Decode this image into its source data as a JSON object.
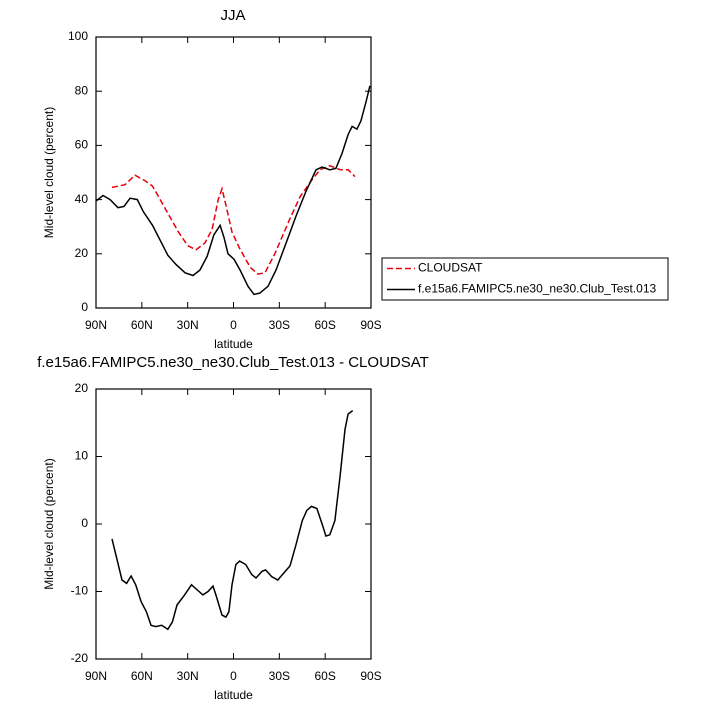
{
  "chart_data": [
    {
      "type": "line",
      "title": "JJA",
      "xlabel": "latitude",
      "ylabel": "Mid-level cloud (percent)",
      "xlim": [
        90,
        -90
      ],
      "xticks": [
        {
          "value": 90,
          "label": "90N"
        },
        {
          "value": 60,
          "label": "60N"
        },
        {
          "value": 30,
          "label": "30N"
        },
        0,
        {
          "value": -30,
          "label": "30S"
        },
        {
          "value": -60,
          "label": "60S"
        },
        {
          "value": -90,
          "label": "90S"
        }
      ],
      "ylim": [
        0,
        100
      ],
      "yticks": [
        0,
        20,
        40,
        60,
        80,
        100
      ],
      "series": [
        {
          "name": "CLOUDSAT",
          "color": "#e8000b",
          "dash": true,
          "x": [
            79.5,
            71,
            64.5,
            58,
            53,
            48,
            43,
            36,
            30,
            24.5,
            18.7,
            14,
            10,
            7.5,
            5,
            1,
            -4,
            -11,
            -16,
            -20.6,
            -27,
            -37,
            -43.5,
            -51,
            -56.6,
            -63,
            -70,
            -75,
            -79.5
          ],
          "values": [
            44.5,
            45.5,
            49,
            47,
            45,
            40,
            35,
            28,
            23,
            21.5,
            24,
            29,
            40,
            44,
            38,
            28,
            22,
            15,
            12.5,
            13,
            20,
            33,
            41,
            47,
            51,
            52.5,
            51,
            51,
            48.5
          ]
        },
        {
          "name": "f.e15a6.FAMIPC5.ne30_ne30.Club_Test.013",
          "color": "#000000",
          "dash": false,
          "x": [
            90,
            85.4,
            80.8,
            75.6,
            71.7,
            67.7,
            63,
            59,
            53,
            48,
            43,
            37.6,
            31.7,
            26.5,
            22,
            17.3,
            12.8,
            8.8,
            6.2,
            3.6,
            -0.3,
            -4.3,
            -9.5,
            -13.4,
            -17.3,
            -22.6,
            -27.8,
            -34.4,
            -41,
            -47.4,
            -54,
            -58,
            -63,
            -67,
            -71,
            -75,
            -77.6,
            -80.8,
            -83.4,
            -86.7,
            -89.3
          ],
          "values": [
            39.5,
            41.5,
            40,
            37,
            37.5,
            40.5,
            40,
            35.5,
            30.5,
            25,
            19.5,
            16,
            13,
            12,
            14,
            19,
            27,
            30.5,
            26,
            20,
            18,
            14,
            8,
            5,
            5.5,
            8,
            14,
            24,
            34,
            43,
            51,
            52,
            51,
            51.5,
            57,
            64,
            67,
            66,
            69,
            76,
            82
          ]
        }
      ]
    },
    {
      "type": "line",
      "title": "f.e15a6.FAMIPC5.ne30_ne30.Club_Test.013 - CLOUDSAT",
      "xlabel": "latitude",
      "ylabel": "Mid-level cloud (percent)",
      "xlim": [
        90,
        -90
      ],
      "xticks": [
        {
          "value": 90,
          "label": "90N"
        },
        {
          "value": 60,
          "label": "60N"
        },
        {
          "value": 30,
          "label": "30N"
        },
        0,
        {
          "value": -30,
          "label": "30S"
        },
        {
          "value": -60,
          "label": "60S"
        },
        {
          "value": -90,
          "label": "90S"
        }
      ],
      "ylim": [
        -20,
        20
      ],
      "yticks": [
        -20,
        -10,
        0,
        10,
        20
      ],
      "color": "#000000",
      "x": [
        79.5,
        76,
        73,
        70,
        67,
        64,
        60.5,
        57,
        54,
        51,
        47,
        43,
        40,
        37,
        32,
        27.5,
        24,
        20,
        16.7,
        13.4,
        11.5,
        7.5,
        5,
        3,
        1,
        -1.6,
        -4,
        -8,
        -12,
        -14.7,
        -18.7,
        -21,
        -25,
        -29,
        -32,
        -37,
        -41,
        -45,
        -48,
        -51,
        -54.6,
        -58,
        -60.5,
        -63,
        -66.4,
        -69.7,
        -73,
        -75,
        -78
      ],
      "values": [
        -2.2,
        -5.5,
        -8.3,
        -8.8,
        -7.7,
        -9,
        -11.5,
        -13,
        -15,
        -15.2,
        -15,
        -15.6,
        -14.5,
        -12,
        -10.5,
        -9,
        -9.7,
        -10.5,
        -10,
        -9.2,
        -10.5,
        -13.5,
        -13.8,
        -13,
        -9,
        -6,
        -5.5,
        -6,
        -7.5,
        -8,
        -7,
        -6.8,
        -7.8,
        -8.3,
        -7.5,
        -6.2,
        -3,
        0.5,
        2,
        2.6,
        2.3,
        0,
        -1.8,
        -1.6,
        0.5,
        7,
        14,
        16.3,
        16.8
      ]
    }
  ]
}
